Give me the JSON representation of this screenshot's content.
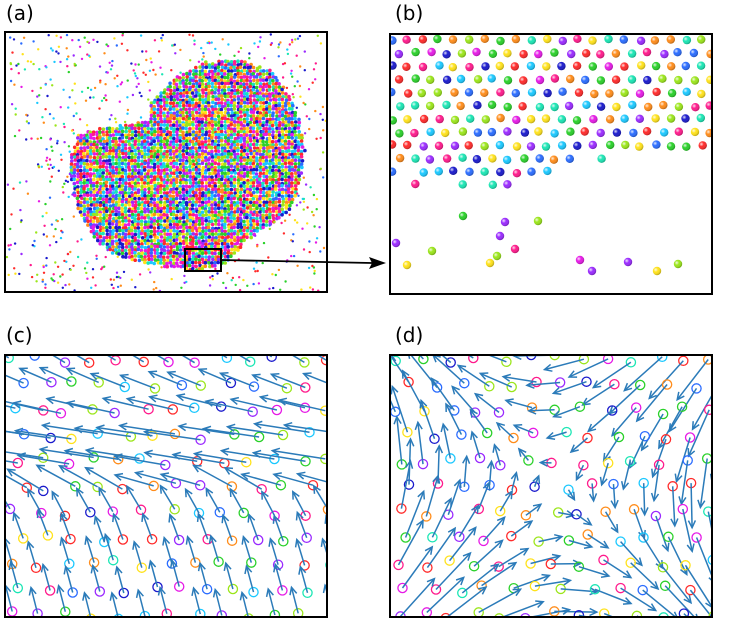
{
  "figure": {
    "panels": [
      {
        "id": "a",
        "label": "(a)"
      },
      {
        "id": "b",
        "label": "(b)"
      },
      {
        "id": "c",
        "label": "(c)"
      },
      {
        "id": "d",
        "label": "(d)"
      }
    ]
  },
  "colors": {
    "arrow": "#2b7bb9",
    "frame": "#000000",
    "particle_palette": [
      "#ff2a2a",
      "#ff8c1a",
      "#ffe21a",
      "#9be61a",
      "#2ad12a",
      "#1ae6b4",
      "#1ac8ff",
      "#2a6cff",
      "#1a1acc",
      "#9a2aff",
      "#e61ae6",
      "#ff1a8c"
    ]
  }
}
